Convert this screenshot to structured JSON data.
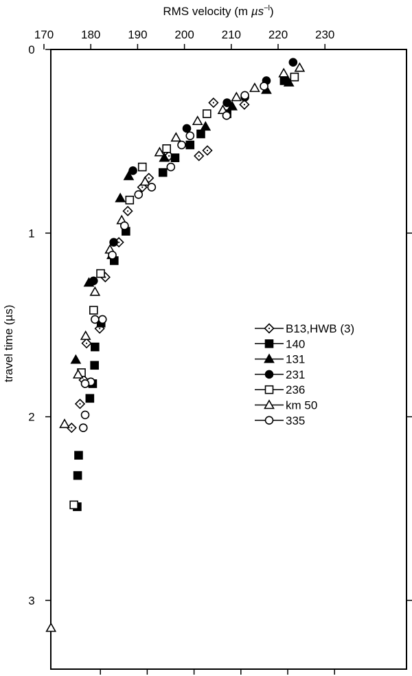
{
  "chart_data": {
    "type": "scatter",
    "title": "",
    "xlabel": "RMS velocity (m µs⁻¹)",
    "ylabel": "travel time (µs)",
    "x_axis_position": "top",
    "y_inverted": true,
    "xlim": [
      168.5,
      237.5
    ],
    "ylim": [
      0,
      3.4
    ],
    "x_ticks": [
      170,
      180,
      190,
      200,
      210,
      220,
      230
    ],
    "y_ticks": [
      0,
      1,
      2,
      3
    ],
    "grid": false,
    "legend_position": "inside right, mid-height",
    "series": [
      {
        "name": "B13,HWB (3)",
        "marker": "diamond-dot",
        "filled": false,
        "points": [
          [
            212.8,
            0.3
          ],
          [
            206.2,
            0.29
          ],
          [
            204.9,
            0.55
          ],
          [
            203.1,
            0.58
          ],
          [
            196.7,
            0.58
          ],
          [
            192.4,
            0.7
          ],
          [
            191.0,
            0.75
          ],
          [
            187.9,
            0.88
          ],
          [
            186.0,
            1.05
          ],
          [
            183.1,
            1.24
          ],
          [
            181.9,
            1.52
          ],
          [
            179.1,
            1.6
          ],
          [
            178.5,
            1.8
          ],
          [
            177.7,
            1.93
          ],
          [
            175.9,
            2.06
          ]
        ]
      },
      {
        "name": "140",
        "marker": "square",
        "filled": true,
        "points": [
          [
            221.3,
            0.17
          ],
          [
            209.1,
            0.35
          ],
          [
            203.5,
            0.46
          ],
          [
            201.2,
            0.52
          ],
          [
            198.0,
            0.59
          ],
          [
            195.4,
            0.67
          ],
          [
            187.5,
            0.99
          ],
          [
            185.0,
            1.15
          ],
          [
            182.2,
            1.49
          ],
          [
            180.9,
            1.62
          ],
          [
            180.8,
            1.72
          ],
          [
            180.4,
            1.82
          ],
          [
            179.8,
            1.9
          ],
          [
            177.4,
            2.21
          ],
          [
            177.2,
            2.32
          ],
          [
            177.1,
            2.49
          ]
        ]
      },
      {
        "name": "131",
        "marker": "triangle",
        "filled": true,
        "points": [
          [
            222.3,
            0.18
          ],
          [
            217.5,
            0.22
          ],
          [
            210.2,
            0.31
          ],
          [
            204.5,
            0.42
          ],
          [
            195.7,
            0.59
          ],
          [
            188.1,
            0.69
          ],
          [
            186.3,
            0.81
          ],
          [
            184.5,
            1.12
          ],
          [
            179.6,
            1.27
          ],
          [
            176.8,
            1.69
          ]
        ]
      },
      {
        "name": "231",
        "marker": "circle",
        "filled": true,
        "points": [
          [
            223.2,
            0.07
          ],
          [
            217.5,
            0.17
          ],
          [
            212.9,
            0.26
          ],
          [
            209.1,
            0.29
          ],
          [
            200.5,
            0.43
          ],
          [
            189.0,
            0.66
          ],
          [
            184.9,
            1.05
          ],
          [
            180.6,
            1.26
          ]
        ]
      },
      {
        "name": "236",
        "marker": "square",
        "filled": false,
        "points": [
          [
            223.5,
            0.15
          ],
          [
            204.8,
            0.35
          ],
          [
            196.2,
            0.54
          ],
          [
            191.0,
            0.64
          ],
          [
            188.3,
            0.82
          ],
          [
            182.1,
            1.22
          ],
          [
            180.6,
            1.42
          ],
          [
            178.0,
            1.76
          ],
          [
            176.4,
            2.48
          ]
        ]
      },
      {
        "name": "km 50",
        "marker": "triangle",
        "filled": false,
        "points": [
          [
            224.6,
            0.1
          ],
          [
            221.2,
            0.13
          ],
          [
            215.0,
            0.21
          ],
          [
            211.1,
            0.26
          ],
          [
            208.2,
            0.33
          ],
          [
            202.8,
            0.39
          ],
          [
            198.2,
            0.48
          ],
          [
            194.7,
            0.56
          ],
          [
            191.6,
            0.72
          ],
          [
            186.6,
            0.93
          ],
          [
            184.1,
            1.09
          ],
          [
            180.9,
            1.32
          ],
          [
            178.9,
            1.56
          ],
          [
            177.3,
            1.77
          ],
          [
            174.4,
            2.04
          ],
          [
            171.5,
            3.15
          ]
        ]
      },
      {
        "name": "335",
        "marker": "circle",
        "filled": false,
        "points": [
          [
            217.0,
            0.2
          ],
          [
            212.9,
            0.25
          ],
          [
            209.0,
            0.36
          ],
          [
            201.2,
            0.47
          ],
          [
            199.4,
            0.52
          ],
          [
            197.1,
            0.64
          ],
          [
            193.0,
            0.75
          ],
          [
            190.2,
            0.79
          ],
          [
            187.2,
            0.96
          ],
          [
            184.6,
            1.12
          ],
          [
            182.5,
            1.47
          ],
          [
            180.9,
            1.47
          ],
          [
            180.0,
            1.81
          ],
          [
            178.8,
            1.82
          ],
          [
            178.8,
            1.99
          ],
          [
            178.4,
            2.06
          ]
        ]
      }
    ]
  },
  "labels": {
    "xlabel_main": "RMS velocity  (m  ",
    "xlabel_mu": "µs",
    "xlabel_sup": "−l",
    "xlabel_close": ")",
    "ylabel": "travel time  (µs)",
    "x_tick_labels": [
      "170",
      "180",
      "190",
      "200",
      "210",
      "220",
      "230"
    ],
    "y_tick_labels": [
      "0",
      "1",
      "2",
      "3"
    ]
  },
  "legend": [
    {
      "label": "B13,HWB  (3)"
    },
    {
      "label": "140"
    },
    {
      "label": "131"
    },
    {
      "label": "231"
    },
    {
      "label": "236"
    },
    {
      "label": "km  50"
    },
    {
      "label": "335"
    }
  ]
}
